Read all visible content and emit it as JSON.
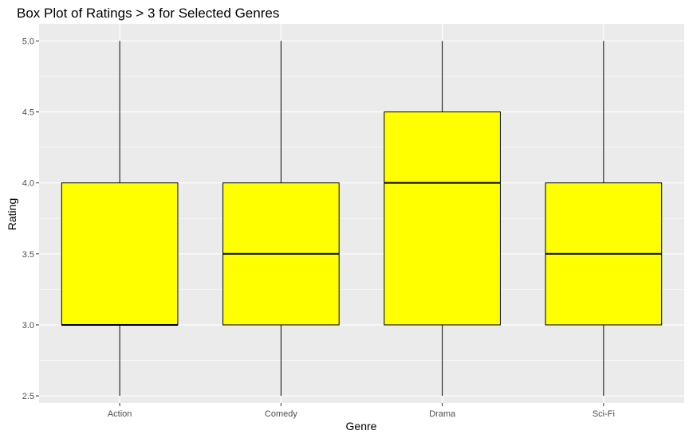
{
  "chart_data": {
    "type": "boxplot",
    "title": "Box Plot of Ratings > 3 for Selected Genres",
    "xlabel": "Genre",
    "ylabel": "Rating",
    "categories": [
      "Action",
      "Comedy",
      "Drama",
      "Sci-Fi"
    ],
    "boxes": [
      {
        "category": "Action",
        "min": 2.5,
        "q1": 3.0,
        "median": 3.0,
        "q3": 4.0,
        "max": 5.0
      },
      {
        "category": "Comedy",
        "min": 2.5,
        "q1": 3.0,
        "median": 3.5,
        "q3": 4.0,
        "max": 5.0
      },
      {
        "category": "Drama",
        "min": 2.5,
        "q1": 3.0,
        "median": 4.0,
        "q3": 4.5,
        "max": 5.0
      },
      {
        "category": "Sci-Fi",
        "min": 2.5,
        "q1": 3.0,
        "median": 3.5,
        "q3": 4.0,
        "max": 5.0
      }
    ],
    "yticks": [
      "2.5",
      "3.0",
      "3.5",
      "4.0",
      "4.5",
      "5.0"
    ],
    "ylim": [
      2.45,
      5.12
    ],
    "grid": true,
    "colors": {
      "box_fill": "#FFFF00",
      "box_outline": "#000000",
      "panel_background": "#EBEBEB",
      "grid_line": "#FFFFFF"
    }
  }
}
